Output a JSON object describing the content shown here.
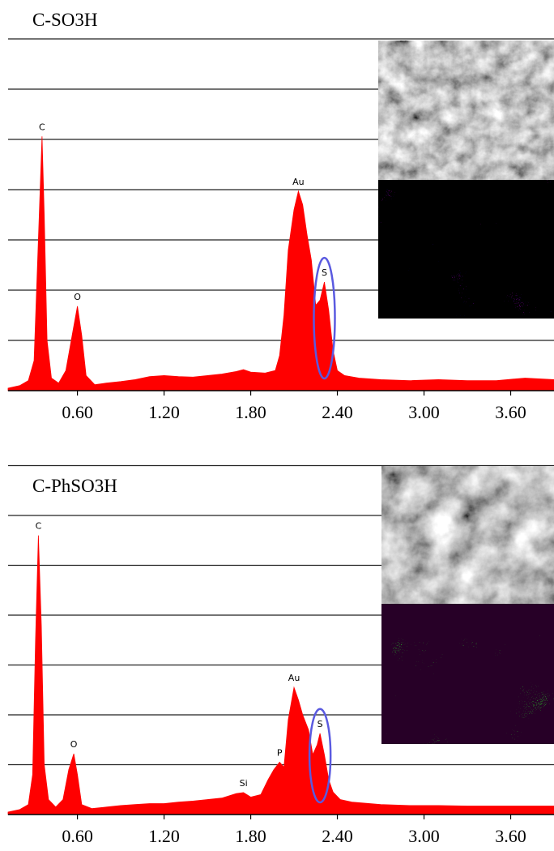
{
  "chart_data": [
    {
      "type": "area",
      "title": "C-SO3H",
      "color": "#ff0000",
      "x": [
        0.12,
        0.2,
        0.26,
        0.3,
        0.33,
        0.355,
        0.37,
        0.39,
        0.42,
        0.47,
        0.52,
        0.57,
        0.6,
        0.63,
        0.66,
        0.72,
        0.8,
        0.9,
        1.0,
        1.1,
        1.2,
        1.3,
        1.4,
        1.5,
        1.6,
        1.7,
        1.75,
        1.8,
        1.9,
        1.97,
        2.0,
        2.03,
        2.06,
        2.1,
        2.13,
        2.16,
        2.19,
        2.22,
        2.25,
        2.28,
        2.31,
        2.34,
        2.37,
        2.4,
        2.45,
        2.55,
        2.7,
        2.9,
        3.1,
        3.3,
        3.5,
        3.7,
        3.9
      ],
      "values": [
        0.05,
        0.1,
        0.2,
        0.6,
        3.0,
        5.06,
        3.5,
        1.0,
        0.25,
        0.15,
        0.4,
        1.2,
        1.68,
        1.1,
        0.3,
        0.12,
        0.15,
        0.18,
        0.22,
        0.28,
        0.3,
        0.28,
        0.27,
        0.3,
        0.33,
        0.38,
        0.42,
        0.37,
        0.35,
        0.4,
        0.7,
        1.5,
        2.8,
        3.6,
        3.97,
        3.7,
        3.1,
        2.6,
        1.7,
        1.8,
        2.16,
        1.6,
        0.8,
        0.4,
        0.3,
        0.25,
        0.22,
        0.2,
        0.22,
        0.2,
        0.2,
        0.25,
        0.22
      ],
      "xlim": [
        0.12,
        3.9
      ],
      "ylim": [
        0,
        7.5
      ],
      "xticks": [
        {
          "value": 0.6,
          "label": "0.60"
        },
        {
          "value": 1.2,
          "label": "1.20"
        },
        {
          "value": 1.8,
          "label": "1.80"
        },
        {
          "value": 2.4,
          "label": "2.40"
        },
        {
          "value": 3.0,
          "label": "3.00"
        },
        {
          "value": 3.6,
          "label": "3.60"
        }
      ],
      "yticks": [
        1,
        2,
        3,
        4,
        5,
        6,
        7
      ],
      "grid": true,
      "annotations": [
        {
          "label": "C",
          "x": 0.355,
          "y": 5.06
        },
        {
          "label": "O",
          "x": 0.6,
          "y": 1.68
        },
        {
          "label": "Au",
          "x": 2.13,
          "y": 3.97
        },
        {
          "label": "S",
          "x": 2.31,
          "y": 2.16
        }
      ]
    },
    {
      "type": "area",
      "title": "C-PhSO3H",
      "color": "#ff0000",
      "x": [
        0.12,
        0.2,
        0.26,
        0.29,
        0.31,
        0.33,
        0.35,
        0.37,
        0.4,
        0.45,
        0.5,
        0.54,
        0.575,
        0.6,
        0.63,
        0.7,
        0.8,
        0.9,
        1.0,
        1.1,
        1.2,
        1.3,
        1.4,
        1.5,
        1.6,
        1.7,
        1.75,
        1.8,
        1.87,
        1.92,
        1.96,
        2.0,
        2.03,
        2.06,
        2.1,
        2.13,
        2.16,
        2.2,
        2.23,
        2.26,
        2.28,
        2.31,
        2.34,
        2.37,
        2.42,
        2.5,
        2.7,
        2.9,
        3.1,
        3.3,
        3.5,
        3.7,
        3.9
      ],
      "values": [
        0.05,
        0.1,
        0.2,
        0.8,
        3.5,
        5.6,
        3.8,
        1.0,
        0.3,
        0.15,
        0.3,
        0.9,
        1.22,
        0.8,
        0.2,
        0.12,
        0.15,
        0.18,
        0.2,
        0.22,
        0.22,
        0.25,
        0.27,
        0.3,
        0.33,
        0.42,
        0.44,
        0.35,
        0.4,
        0.7,
        0.9,
        1.05,
        0.95,
        1.9,
        2.55,
        2.3,
        2.0,
        1.7,
        1.2,
        1.4,
        1.63,
        1.2,
        0.7,
        0.45,
        0.3,
        0.25,
        0.2,
        0.18,
        0.18,
        0.17,
        0.17,
        0.17,
        0.17
      ],
      "xlim": [
        0.12,
        3.9
      ],
      "ylim": [
        0,
        7.5
      ],
      "xticks": [
        {
          "value": 0.6,
          "label": "0.60"
        },
        {
          "value": 1.2,
          "label": "1.20"
        },
        {
          "value": 1.8,
          "label": "1.80"
        },
        {
          "value": 2.4,
          "label": "2.40"
        },
        {
          "value": 3.0,
          "label": "3.00"
        },
        {
          "value": 3.6,
          "label": "3.60"
        }
      ],
      "yticks": [
        1,
        2,
        3,
        4,
        5,
        6,
        7
      ],
      "grid": true,
      "annotations": [
        {
          "label": "C",
          "x": 0.33,
          "y": 5.6
        },
        {
          "label": "O",
          "x": 0.575,
          "y": 1.22
        },
        {
          "label": "Si",
          "x": 1.75,
          "y": 0.44
        },
        {
          "label": "P",
          "x": 2.0,
          "y": 1.05
        },
        {
          "label": "Au",
          "x": 2.1,
          "y": 2.55
        },
        {
          "label": "S",
          "x": 2.28,
          "y": 1.63
        }
      ]
    }
  ]
}
